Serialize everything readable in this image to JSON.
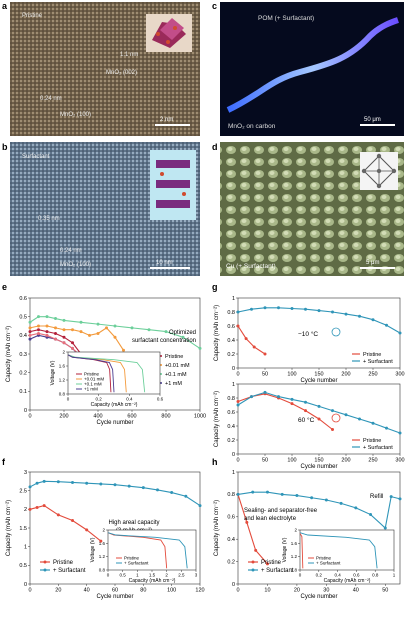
{
  "panels": {
    "a": {
      "letter": "a",
      "labels": [
        "Pristine",
        "0.24 nm",
        "MnO₂ (100)",
        "1.1 nm",
        "MnO₂ (002)"
      ],
      "scale": "2 nm"
    },
    "b": {
      "letter": "b",
      "labels": [
        "Surfactant",
        "0.35 nm",
        "0.24 nm",
        "MnO₂ (100)"
      ],
      "scale": "10 nm"
    },
    "c": {
      "letter": "c",
      "labels": [
        "POM (+ Surfactant)",
        "MnO₂ on carbon"
      ],
      "scale": "50 μm"
    },
    "d": {
      "letter": "d",
      "labels": [
        "Cu (+ Surfactant)"
      ],
      "scale": "5 μm"
    }
  },
  "chart_data": [
    {
      "id": "e",
      "type": "line",
      "xlabel": "Cycle number",
      "ylabel": "Capacity (mAh cm⁻²)",
      "xlim": [
        0,
        1000
      ],
      "ylim": [
        0,
        0.6
      ],
      "xticks": [
        0,
        200,
        400,
        600,
        800,
        1000
      ],
      "yticks": [
        0,
        0.1,
        0.2,
        0.3,
        0.4,
        0.5,
        0.6
      ],
      "annotation": "Optimized surfactant concentration",
      "legend": [
        "Pristine",
        "+0.01 mM",
        "+0.1 mM",
        "+1 mM"
      ],
      "colors": {
        "Pristine": "#b3203a",
        "+0.01 mM": "#f39a3c",
        "+0.1 mM": "#6ccf9a",
        "+1 mM": "#4a3d8f",
        "Pristine_light": "#e86f7a"
      },
      "series": [
        {
          "name": "+0.1 mM",
          "color": "#6ccf9a",
          "x": [
            0,
            50,
            100,
            150,
            200,
            300,
            400,
            500,
            600,
            700,
            800,
            900,
            1000
          ],
          "y": [
            0.47,
            0.5,
            0.5,
            0.49,
            0.48,
            0.47,
            0.46,
            0.45,
            0.44,
            0.43,
            0.42,
            0.39,
            0.33
          ]
        },
        {
          "name": "+0.01 mM",
          "color": "#f39a3c",
          "x": [
            0,
            50,
            100,
            150,
            200,
            250,
            300,
            350,
            400,
            450,
            500,
            550
          ],
          "y": [
            0.44,
            0.45,
            0.45,
            0.44,
            0.43,
            0.43,
            0.42,
            0.4,
            0.41,
            0.44,
            0.39,
            0.32
          ]
        },
        {
          "name": "Pristine",
          "color": "#b3203a",
          "x": [
            0,
            50,
            100,
            150,
            200,
            250,
            300,
            350
          ],
          "y": [
            0.42,
            0.43,
            0.42,
            0.41,
            0.39,
            0.36,
            0.3,
            0.24
          ]
        },
        {
          "name": "+1 mM",
          "color": "#4a3d8f",
          "x": [
            0,
            50,
            100,
            150,
            200,
            250,
            300,
            350
          ],
          "y": [
            0.38,
            0.4,
            0.39,
            0.38,
            0.36,
            0.33,
            0.28,
            0.25
          ]
        },
        {
          "name": "Pristine_light",
          "color": "#e86f7a",
          "x": [
            0,
            50,
            100,
            150,
            200,
            250,
            300
          ],
          "y": [
            0.4,
            0.41,
            0.4,
            0.38,
            0.36,
            0.33,
            0.29
          ]
        }
      ],
      "inset": {
        "xlabel": "Capacity (mAh cm⁻²)",
        "ylabel": "Voltage (V)",
        "xlim": [
          0,
          0.6
        ],
        "ylim": [
          0.8,
          2.0
        ],
        "xticks": [
          0,
          0.2,
          0.4,
          0.6
        ],
        "yticks": [
          0.8,
          1.2,
          1.6,
          2.0
        ],
        "legend": [
          "Pristine",
          "+0.01 mM",
          "+0.1 mM",
          "+1 mM"
        ]
      }
    },
    {
      "id": "g1",
      "type": "line",
      "xlabel": "Cycle number",
      "ylabel": "Capacity (mAh cm⁻²)",
      "xlim": [
        0,
        300
      ],
      "ylim": [
        0,
        1.0
      ],
      "xticks": [
        0,
        50,
        100,
        150,
        200,
        250,
        300
      ],
      "yticks": [
        0,
        0.2,
        0.4,
        0.6,
        0.8,
        1.0
      ],
      "annotation": "−10 °C",
      "legend": [
        "Pristine",
        "+ Surfactant"
      ],
      "series": [
        {
          "name": "Pristine",
          "color": "#e34b3c",
          "x": [
            0,
            15,
            30,
            50
          ],
          "y": [
            0.6,
            0.42,
            0.3,
            0.2
          ]
        },
        {
          "name": "+ Surfactant",
          "color": "#2f95b8",
          "x": [
            0,
            25,
            50,
            75,
            100,
            125,
            150,
            175,
            200,
            225,
            250,
            275,
            300
          ],
          "y": [
            0.8,
            0.84,
            0.86,
            0.86,
            0.85,
            0.84,
            0.82,
            0.8,
            0.77,
            0.74,
            0.69,
            0.61,
            0.5
          ]
        }
      ]
    },
    {
      "id": "g2",
      "type": "line",
      "xlabel": "Cycle number",
      "ylabel": "Capacity (mAh cm⁻²)",
      "xlim": [
        0,
        300
      ],
      "ylim": [
        0,
        1.0
      ],
      "xticks": [
        0,
        50,
        100,
        150,
        200,
        250,
        300
      ],
      "yticks": [
        0,
        0.2,
        0.4,
        0.6,
        0.8,
        1.0
      ],
      "annotation": "60 °C",
      "legend": [
        "Pristine",
        "+ Surfactant"
      ],
      "series": [
        {
          "name": "Pristine",
          "color": "#e34b3c",
          "x": [
            0,
            25,
            50,
            75,
            100,
            125,
            150,
            175
          ],
          "y": [
            0.75,
            0.82,
            0.86,
            0.8,
            0.72,
            0.62,
            0.5,
            0.35
          ]
        },
        {
          "name": "+ Surfactant",
          "color": "#2f95b8",
          "x": [
            0,
            25,
            50,
            75,
            100,
            125,
            150,
            175,
            200,
            225,
            250,
            275,
            300
          ],
          "y": [
            0.7,
            0.82,
            0.88,
            0.82,
            0.78,
            0.74,
            0.68,
            0.62,
            0.56,
            0.5,
            0.44,
            0.37,
            0.3
          ]
        }
      ]
    },
    {
      "id": "f",
      "type": "line",
      "xlabel": "Cycle number",
      "ylabel": "Capacity (mAh cm⁻²)",
      "xlim": [
        0,
        120
      ],
      "ylim": [
        0,
        3.0
      ],
      "xticks": [
        0,
        20,
        40,
        60,
        80,
        100,
        120
      ],
      "yticks": [
        0,
        0.5,
        1.0,
        1.5,
        2.0,
        2.5,
        3.0
      ],
      "annotation": "High areal capacity (3 mAh cm⁻²)",
      "legend": [
        "Pristine",
        "+ Surfactant"
      ],
      "series": [
        {
          "name": "Pristine",
          "color": "#e34b3c",
          "x": [
            0,
            5,
            10,
            20,
            30,
            40,
            50
          ],
          "y": [
            2.0,
            2.05,
            2.1,
            1.85,
            1.7,
            1.45,
            1.15
          ]
        },
        {
          "name": "+ Surfactant",
          "color": "#2f95b8",
          "x": [
            0,
            5,
            10,
            20,
            30,
            40,
            50,
            60,
            70,
            80,
            90,
            100,
            110,
            120
          ],
          "y": [
            2.6,
            2.7,
            2.75,
            2.74,
            2.72,
            2.7,
            2.68,
            2.66,
            2.62,
            2.58,
            2.52,
            2.45,
            2.35,
            2.1
          ]
        }
      ],
      "inset": {
        "xlabel": "Capacity (mAh cm⁻²)",
        "ylabel": "Voltage (V)",
        "xlim": [
          0,
          3.0
        ],
        "ylim": [
          0.8,
          2.0
        ],
        "xticks": [
          0,
          0.5,
          1.0,
          1.5,
          2.0,
          2.5,
          3.0
        ],
        "yticks": [
          0.8,
          1.2,
          1.6,
          2.0
        ],
        "legend": [
          "Pristine",
          "+ Surfactant"
        ]
      }
    },
    {
      "id": "h",
      "type": "line",
      "xlabel": "Cycle number",
      "ylabel": "Capacity (mAh cm⁻²)",
      "xlim": [
        0,
        55
      ],
      "ylim": [
        0,
        1.0
      ],
      "xticks": [
        0,
        10,
        20,
        30,
        40,
        50
      ],
      "yticks": [
        0,
        0.2,
        0.4,
        0.6,
        0.8,
        1.0
      ],
      "annotation": "Sealing- and separator-free and lean electrolyte",
      "refill": "Refill",
      "legend": [
        "Pristine",
        "+ Surfactant"
      ],
      "series": [
        {
          "name": "Pristine",
          "color": "#e34b3c",
          "x": [
            0,
            3,
            6,
            10
          ],
          "y": [
            0.8,
            0.55,
            0.3,
            0.18
          ]
        },
        {
          "name": "+ Surfactant",
          "color": "#2f95b8",
          "x": [
            0,
            5,
            10,
            15,
            20,
            25,
            30,
            35,
            40,
            45,
            50,
            52,
            55
          ],
          "y": [
            0.8,
            0.82,
            0.82,
            0.8,
            0.79,
            0.77,
            0.75,
            0.72,
            0.68,
            0.62,
            0.5,
            0.78,
            0.76
          ]
        }
      ],
      "inset": {
        "xlabel": "Capacity (mAh cm⁻²)",
        "ylabel": "Voltage (V)",
        "xlim": [
          0,
          1.0
        ],
        "ylim": [
          0.8,
          2.0
        ],
        "xticks": [
          0,
          0.2,
          0.4,
          0.6,
          0.8,
          1.0
        ],
        "yticks": [
          0.8,
          1.2,
          1.6,
          2.0
        ],
        "legend": [
          "Pristine",
          "+ Surfactant"
        ]
      }
    }
  ]
}
